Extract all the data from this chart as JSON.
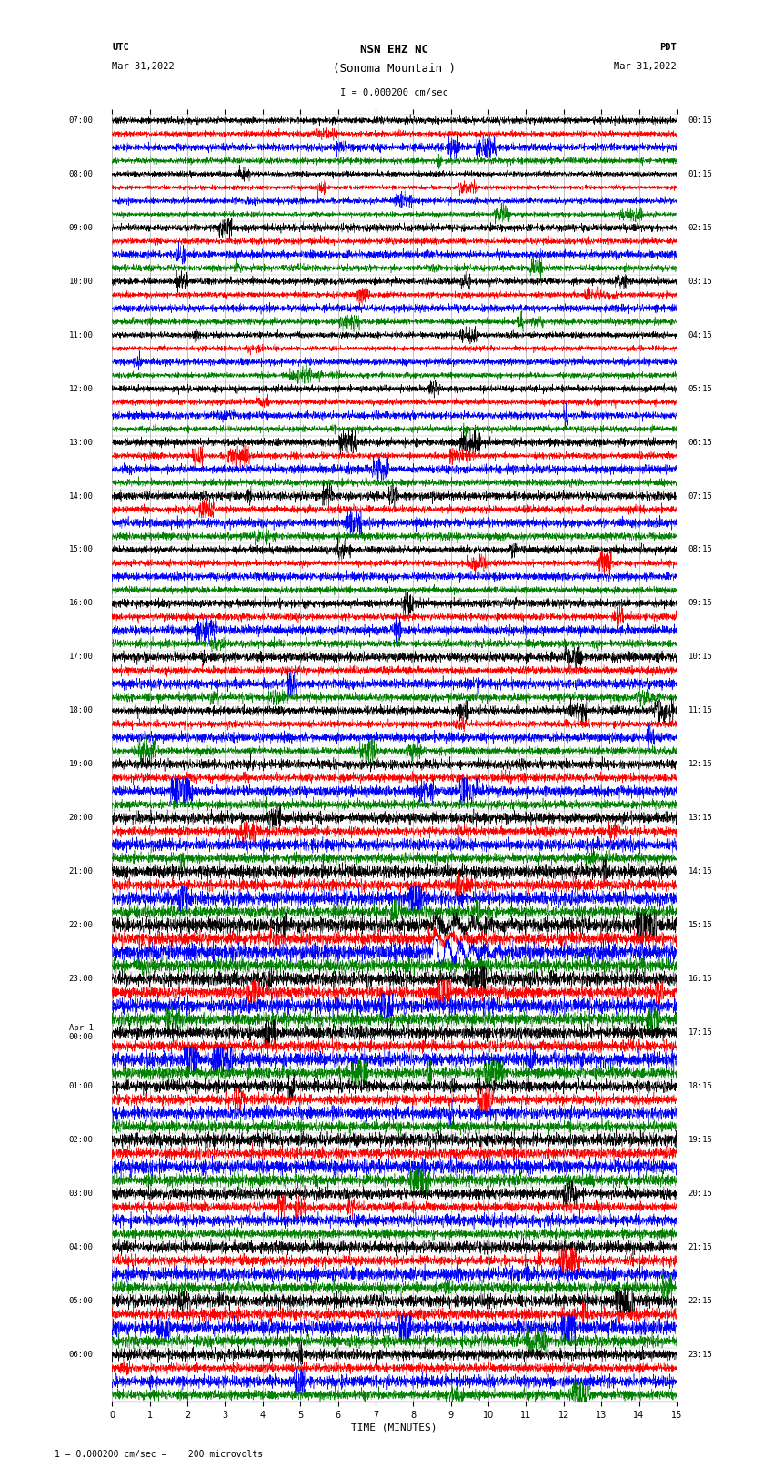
{
  "title_line1": "NSN EHZ NC",
  "title_line2": "(Sonoma Mountain )",
  "scale_label": "I = 0.000200 cm/sec",
  "left_label": "UTC",
  "left_date": "Mar 31,2022",
  "right_label": "PDT",
  "right_date": "Mar 31,2022",
  "bottom_label": "TIME (MINUTES)",
  "bottom_note": "1 = 0.000200 cm/sec =    200 microvolts",
  "xmin": 0,
  "xmax": 15,
  "xticks": [
    0,
    1,
    2,
    3,
    4,
    5,
    6,
    7,
    8,
    9,
    10,
    11,
    12,
    13,
    14,
    15
  ],
  "num_hour_blocks": 24,
  "traces_per_block": 4,
  "colors": [
    "black",
    "red",
    "blue",
    "green"
  ],
  "utc_labels": [
    "07:00",
    "08:00",
    "09:00",
    "10:00",
    "11:00",
    "12:00",
    "13:00",
    "14:00",
    "15:00",
    "16:00",
    "17:00",
    "18:00",
    "19:00",
    "20:00",
    "21:00",
    "22:00",
    "23:00",
    "Apr 1\n00:00",
    "01:00",
    "02:00",
    "03:00",
    "04:00",
    "05:00",
    "06:00"
  ],
  "pdt_labels": [
    "00:15",
    "01:15",
    "02:15",
    "03:15",
    "04:15",
    "05:15",
    "06:15",
    "07:15",
    "08:15",
    "09:15",
    "10:15",
    "11:15",
    "12:15",
    "13:15",
    "14:15",
    "15:15",
    "16:15",
    "17:15",
    "18:15",
    "19:15",
    "20:15",
    "21:15",
    "22:15",
    "23:15"
  ],
  "bg_color": "white",
  "grid_color": "#888888",
  "grid_linewidth": 0.5,
  "trace_linewidth": 0.35,
  "event_block": 15,
  "event_time": 8.5
}
